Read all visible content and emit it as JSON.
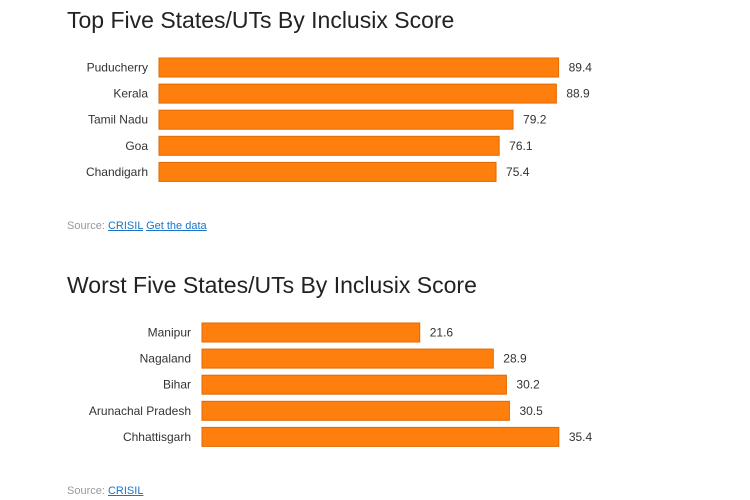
{
  "chart_data": [
    {
      "type": "bar",
      "orientation": "horizontal",
      "title": "Top Five States/UTs By Inclusix Score",
      "categories": [
        "Puducherry",
        "Kerala",
        "Tamil Nadu",
        "Goa",
        "Chandigarh"
      ],
      "values": [
        89.4,
        88.9,
        79.2,
        76.1,
        75.4
      ],
      "bar_color": "#ff7f0e",
      "grid": false,
      "source": {
        "label": "Source:",
        "links": [
          "CRISIL",
          "Get the data"
        ]
      }
    },
    {
      "type": "bar",
      "orientation": "horizontal",
      "title": "Worst Five States/UTs By Inclusix Score",
      "categories": [
        "Manipur",
        "Nagaland",
        "Bihar",
        "Arunachal Pradesh",
        "Chhattisgarh"
      ],
      "values": [
        21.6,
        28.9,
        30.2,
        30.5,
        35.4
      ],
      "bar_color": "#ff7f0e",
      "grid": false,
      "source": {
        "label": "Source:",
        "links": [
          "CRISIL"
        ]
      }
    }
  ]
}
